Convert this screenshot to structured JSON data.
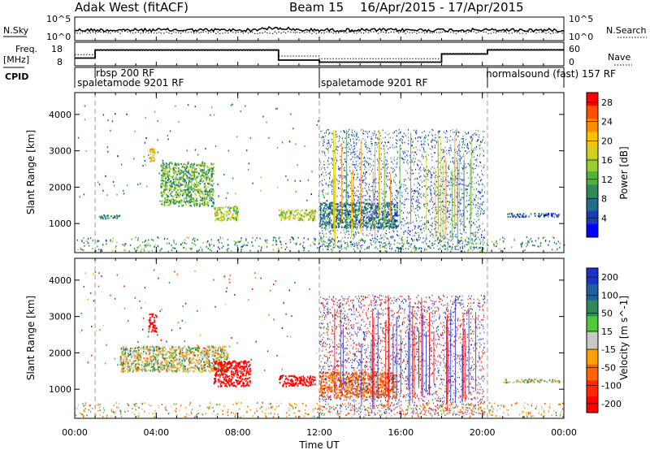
{
  "header": {
    "station": "Adak West (fitACF)",
    "beam": "Beam 15",
    "date_range": "16/Apr/2015 - 17/Apr/2015"
  },
  "strips": {
    "nsky_label": "N.Sky",
    "nsky_ticks": [
      "10^5",
      "10^0"
    ],
    "nsearch_label": "N.Search",
    "nsearch_ticks": [
      "10^5",
      "10^0"
    ],
    "freq_label": "Freq.",
    "freq_unit": "[MHz]",
    "freq_ticks": [
      "18",
      "8"
    ],
    "nave_label": "Nave",
    "nave_ticks": [
      "60",
      "0"
    ],
    "cpid_label": "CPID",
    "cpid_segments": [
      {
        "label": "rbsp 200 RF",
        "start": 1.0
      },
      {
        "label": "spaletamode 9201 RF",
        "start": 0.0
      },
      {
        "label": "spaletamode 9201 RF",
        "start": 12.0
      },
      {
        "label": "normalsound (fast) 157 RF",
        "start": 20.25
      }
    ],
    "freq_steps": [
      [
        0,
        11
      ],
      [
        1,
        15
      ],
      [
        10,
        10
      ],
      [
        12,
        9
      ],
      [
        18,
        13
      ],
      [
        20.25,
        15
      ],
      [
        24,
        15
      ]
    ],
    "nave_steps": [
      [
        0,
        7
      ],
      [
        1,
        10
      ],
      [
        10,
        6
      ],
      [
        12,
        4
      ],
      [
        18,
        8
      ],
      [
        20.25,
        11
      ],
      [
        24,
        11
      ]
    ]
  },
  "chart_data": [
    {
      "type": "heatmap",
      "panel": "power",
      "ylabel": "Slant Range [km]",
      "xlabel": "Time UT",
      "xlim": [
        0,
        24
      ],
      "ylim": [
        200,
        4600
      ],
      "xticks": [
        "00:00",
        "04:00",
        "08:00",
        "12:00",
        "16:00",
        "20:00",
        "00:00"
      ],
      "xtick_values": [
        0,
        4,
        8,
        12,
        16,
        20,
        24
      ],
      "yticks": [
        "1000",
        "2000",
        "3000",
        "4000"
      ],
      "ytick_values": [
        1000,
        2000,
        3000,
        4000
      ],
      "colorbar": {
        "label": "Power [dB]",
        "range": [
          0,
          30
        ],
        "ticks": [
          "4",
          "8",
          "12",
          "16",
          "20",
          "24",
          "28"
        ],
        "tick_values": [
          4,
          8,
          12,
          16,
          20,
          24,
          28
        ],
        "colors": [
          "#0000ff",
          "#1a3cb4",
          "#1f6e8c",
          "#2e8b57",
          "#50b43c",
          "#9acd32",
          "#d2d21e",
          "#ffc000",
          "#ff8c00",
          "#ff5000",
          "#ff0000"
        ]
      },
      "features": [
        {
          "t0": 3.6,
          "t1": 3.9,
          "r0": 2700,
          "r1": 3100,
          "level": 20
        },
        {
          "t0": 4.2,
          "t1": 6.8,
          "r0": 1500,
          "r1": 2700,
          "level": 12
        },
        {
          "t0": 6.8,
          "t1": 8.0,
          "r0": 1100,
          "r1": 1500,
          "level": 16
        },
        {
          "t0": 10.0,
          "t1": 11.8,
          "r0": 1100,
          "r1": 1400,
          "level": 16
        },
        {
          "t0": 12.0,
          "t1": 15.8,
          "r0": 900,
          "r1": 1600,
          "level": 8
        },
        {
          "t0": 1.0,
          "t1": 2.2,
          "r0": 1150,
          "r1": 1250,
          "level": 8
        },
        {
          "t0": 21.2,
          "t1": 23.8,
          "r0": 1200,
          "r1": 1300,
          "level": 6
        }
      ]
    },
    {
      "type": "heatmap",
      "panel": "velocity",
      "ylabel": "Slant Range [km]",
      "xlabel": "Time UT",
      "xlim": [
        0,
        24
      ],
      "ylim": [
        200,
        4600
      ],
      "xticks": [
        "00:00",
        "04:00",
        "08:00",
        "12:00",
        "16:00",
        "20:00",
        "00:00"
      ],
      "xtick_values": [
        0,
        4,
        8,
        12,
        16,
        20,
        24
      ],
      "yticks": [
        "1000",
        "2000",
        "3000",
        "4000"
      ],
      "ytick_values": [
        1000,
        2000,
        3000,
        4000
      ],
      "colorbar": {
        "label": "Velocity [m s^-1]",
        "ticks": [
          "200",
          "100",
          "50",
          "15",
          "-15",
          "-50",
          "-100",
          "-200"
        ],
        "tick_values": [
          200,
          100,
          50,
          15,
          -15,
          -50,
          -100,
          -200
        ],
        "colors": [
          "#1e32c8",
          "#2060a0",
          "#2e8b57",
          "#50c83c",
          "#c8c8c8",
          "#ffa000",
          "#ff6400",
          "#ff2800",
          "#ff0000"
        ]
      },
      "features": [
        {
          "t0": 3.6,
          "t1": 4.0,
          "r0": 2600,
          "r1": 3100,
          "vel": -200
        },
        {
          "t0": 2.2,
          "t1": 7.5,
          "r0": 1500,
          "r1": 2200,
          "vel": 0
        },
        {
          "t0": 6.8,
          "t1": 8.6,
          "r0": 1100,
          "r1": 1800,
          "vel": -200
        },
        {
          "t0": 10.0,
          "t1": 11.8,
          "r0": 1100,
          "r1": 1400,
          "vel": -200
        },
        {
          "t0": 12.0,
          "t1": 15.8,
          "r0": 800,
          "r1": 1500,
          "vel": -60
        },
        {
          "t0": 21.0,
          "t1": 23.8,
          "r0": 1200,
          "r1": 1300,
          "vel": 0
        }
      ]
    }
  ]
}
